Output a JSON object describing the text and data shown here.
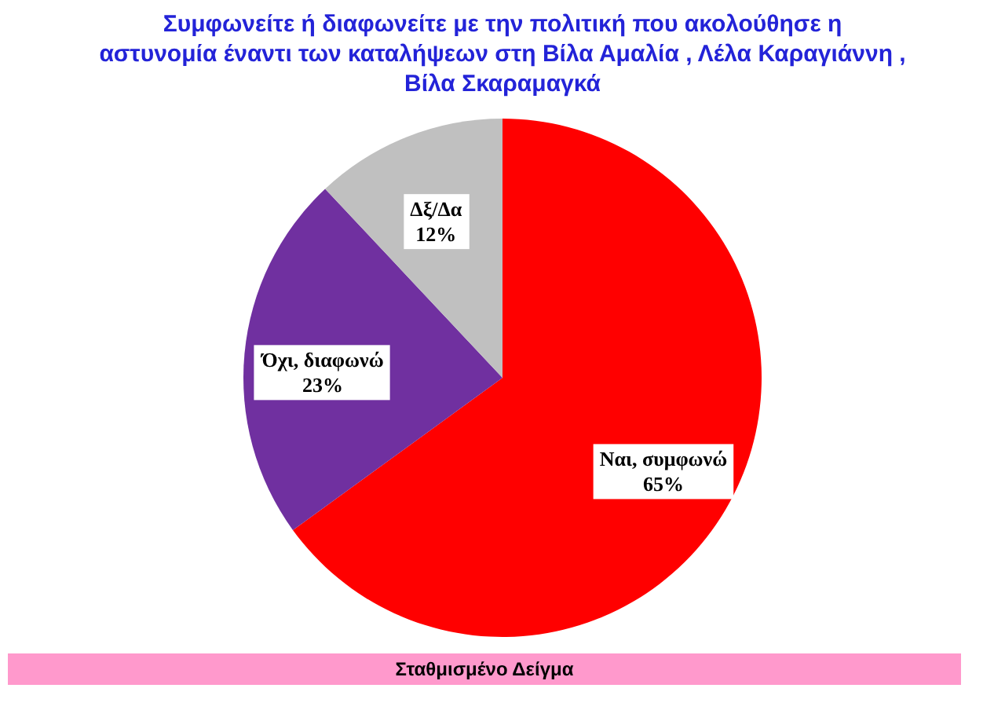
{
  "chart_data": {
    "type": "pie",
    "title": "Συμφωνείτε ή διαφωνείτε με την πολιτική που ακολούθησε η\nαστυνομία έναντι των καταλήψεων στη  Βίλα Αμαλία , Λέλα Καραγιάννη  ,\nΒίλα Σκαραμαγκά",
    "categories": [
      "Ναι, συμφωνώ",
      "Όχι, διαφωνώ",
      "Δξ/Δα"
    ],
    "values": [
      65,
      23,
      12
    ],
    "colors": [
      "#ff0000",
      "#7030a0",
      "#c0c0c0"
    ],
    "value_labels": [
      "65%",
      "23%",
      "12%"
    ],
    "annotations": [
      "Σταθμισμένο Δείγμα"
    ]
  }
}
